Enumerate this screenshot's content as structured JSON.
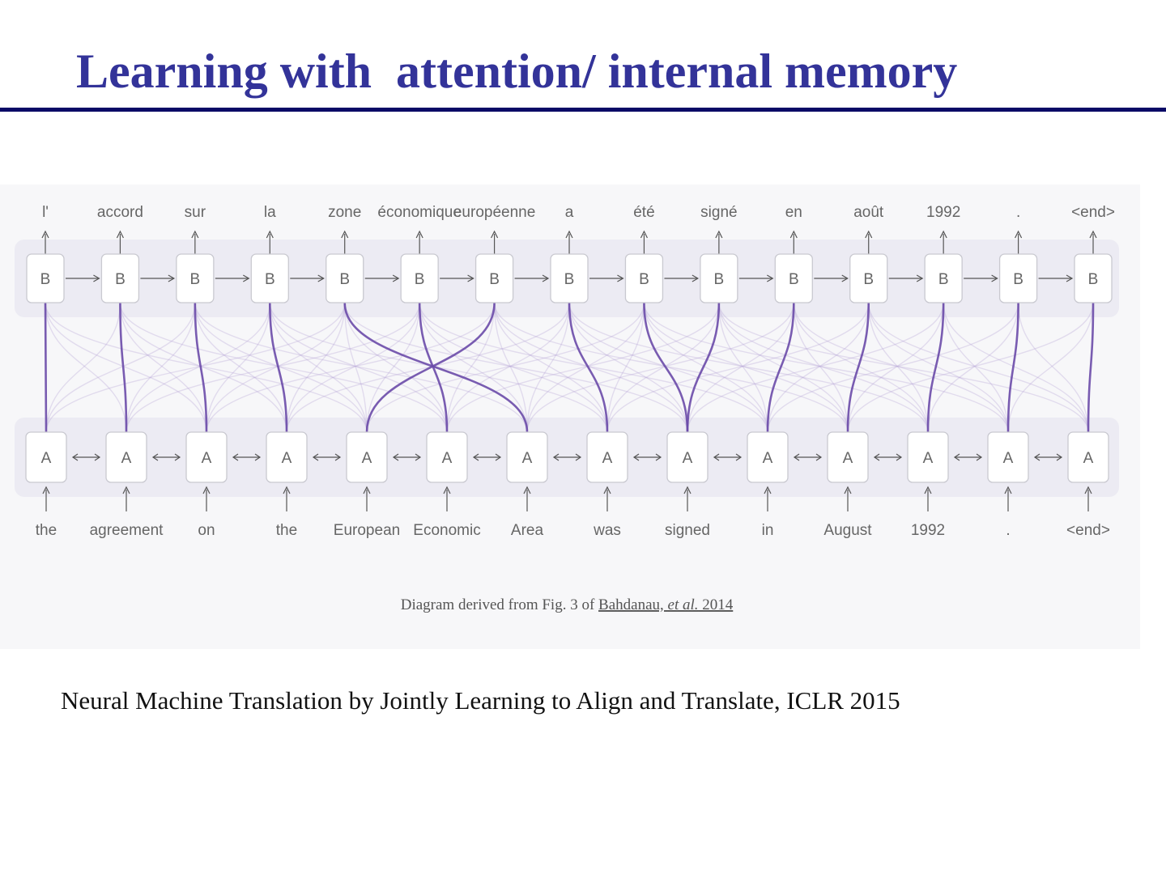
{
  "slide": {
    "title": "Learning with  attention/ internal memory",
    "citation": "Neural Machine Translation by Jointly Learning to Align and Translate, ICLR 2015"
  },
  "diagram": {
    "encoder_label": "A",
    "decoder_label": "B",
    "source_words": [
      "the",
      "agreement",
      "on",
      "the",
      "European",
      "Economic",
      "Area",
      "was",
      "signed",
      "in",
      "August",
      "1992",
      ".",
      "<end>"
    ],
    "target_words": [
      "l'",
      "accord",
      "sur",
      "la",
      "zone",
      "économique",
      "européenne",
      "a",
      "été",
      "signé",
      "en",
      "août",
      "1992",
      ".",
      "<end>"
    ],
    "strong_alignments": [
      [
        0,
        0
      ],
      [
        1,
        1
      ],
      [
        2,
        2
      ],
      [
        3,
        3
      ],
      [
        4,
        6
      ],
      [
        5,
        5
      ],
      [
        6,
        4
      ],
      [
        7,
        7
      ],
      [
        8,
        8
      ],
      [
        8,
        9
      ],
      [
        9,
        10
      ],
      [
        10,
        11
      ],
      [
        11,
        12
      ],
      [
        12,
        13
      ],
      [
        13,
        14
      ]
    ],
    "caption": {
      "prefix": "Diagram derived from Fig. 3 of ",
      "link_author": "Bahdanau, ",
      "link_etal": "et al.",
      "link_year": " 2014"
    },
    "colors": {
      "strong_line": "#6a4aa8",
      "weak_line": "#b7a6d8",
      "band": "#ecebf3",
      "box_border": "#c9c9d0",
      "label": "#666666"
    }
  }
}
